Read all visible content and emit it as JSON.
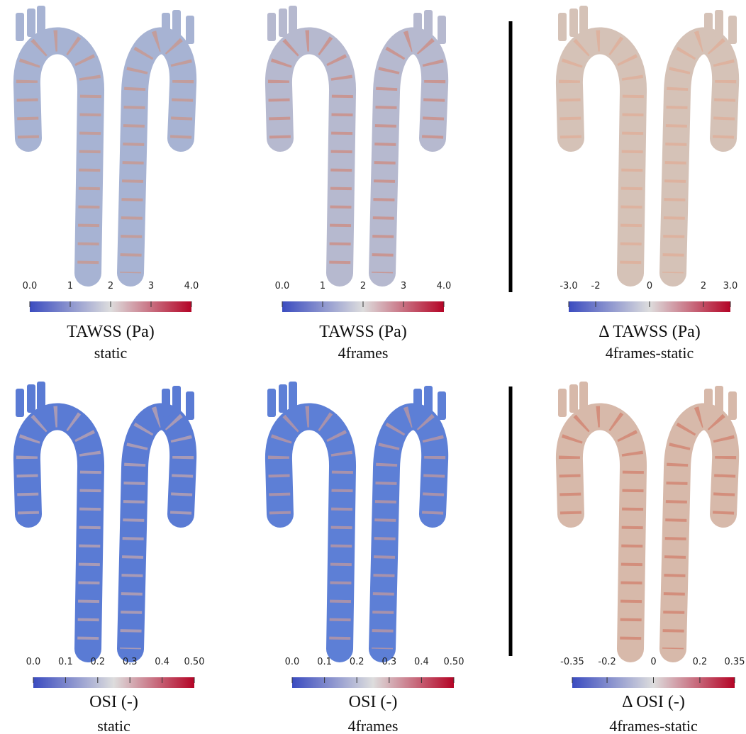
{
  "panels": [
    {
      "title": "TAWSS (Pa)",
      "subtitle": "static",
      "colorbar": {
        "lim": [
          0,
          4
        ],
        "ticks": [
          {
            "value": 0,
            "label": "0.0"
          },
          1,
          2,
          3,
          {
            "value": 4,
            "label": "4.0"
          }
        ]
      }
    },
    {
      "title": "TAWSS (Pa)",
      "subtitle": "4frames",
      "colorbar": {
        "lim": [
          0,
          4
        ],
        "ticks": [
          {
            "value": 0,
            "label": "0.0"
          },
          1,
          2,
          3,
          {
            "value": 4,
            "label": "4.0"
          }
        ]
      }
    },
    {
      "title": "Δ TAWSS (Pa)",
      "subtitle": "4frames-static",
      "colorbar": {
        "lim": [
          -3,
          3
        ],
        "ticks": [
          {
            "value": -3,
            "label": "-3.0"
          },
          -2,
          0,
          2,
          {
            "value": 3,
            "label": "3.0"
          }
        ]
      }
    },
    {
      "title": "OSI (-)",
      "subtitle": "static",
      "colorbar": {
        "lim": [
          0,
          0.5
        ],
        "ticks": [
          {
            "value": 0,
            "label": "0.0"
          },
          0.1,
          0.2,
          0.3,
          0.4,
          {
            "value": 0.5,
            "label": "0.50"
          }
        ]
      }
    },
    {
      "title": "OSI (-)",
      "subtitle": "4frames",
      "colorbar": {
        "lim": [
          0,
          0.5
        ],
        "ticks": [
          {
            "value": 0,
            "label": "0.0"
          },
          0.1,
          0.2,
          0.3,
          0.4,
          {
            "value": 0.5,
            "label": "0.50"
          }
        ]
      }
    },
    {
      "title": "Δ OSI (-)",
      "subtitle": "4frames-static",
      "colorbar": {
        "lim": [
          -0.35,
          0.35
        ],
        "ticks": [
          -0.35,
          -0.2,
          0,
          0.2,
          0.35
        ]
      }
    }
  ]
}
